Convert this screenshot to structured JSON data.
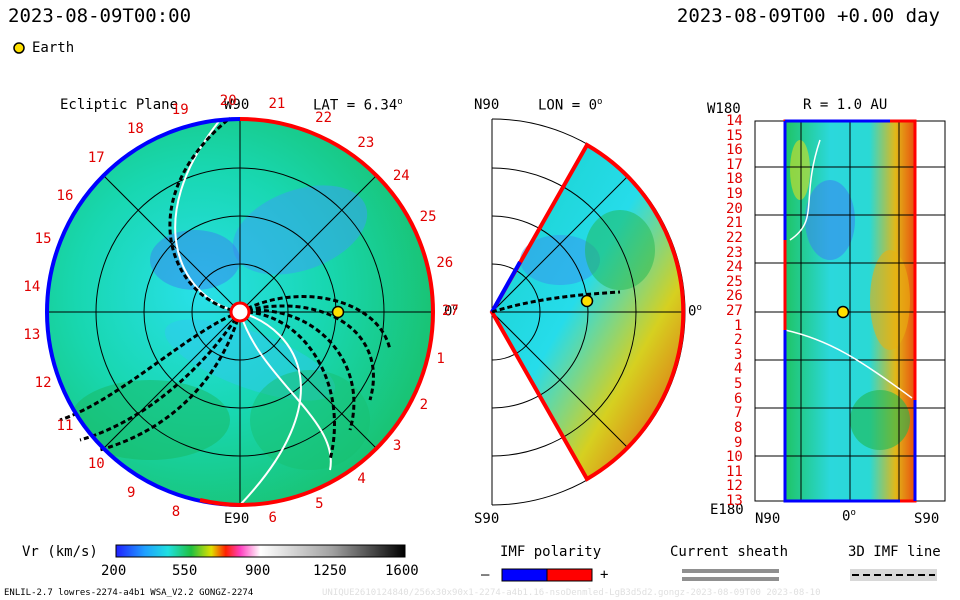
{
  "header": {
    "left_timestamp": "2023-08-09T00:00",
    "right_timestamp": "2023-08-09T00 +0.00 day"
  },
  "legend": {
    "earth_label": "Earth",
    "earth_color": "#ffe000"
  },
  "ecliptic": {
    "title": "Ecliptic Plane",
    "lat_label": "LAT = 6.34",
    "lat_deg": "o",
    "top_label": "W90",
    "bottom_label": "E90",
    "right_label": "0",
    "deg": "o",
    "cr_labels": [
      "1",
      "2",
      "3",
      "4",
      "5",
      "6",
      "8",
      "9",
      "10",
      "11",
      "12",
      "13",
      "14",
      "15",
      "16",
      "17",
      "18",
      "19",
      "20",
      "21",
      "22",
      "23",
      "24",
      "25",
      "26",
      "27"
    ]
  },
  "meridional": {
    "top_left": "N90",
    "lon_label": "LON = 0",
    "deg": "o",
    "right_label": "0",
    "bottom_label": "S90"
  },
  "radial": {
    "top_left": "W180",
    "r_label": "R = 1.0 AU",
    "bottom_left": "E180",
    "x_left": "N90",
    "x_mid": "0",
    "x_right": "S90",
    "deg": "o",
    "row_labels": [
      "14",
      "15",
      "16",
      "17",
      "18",
      "19",
      "20",
      "21",
      "22",
      "23",
      "24",
      "25",
      "26",
      "27",
      "1",
      "2",
      "3",
      "4",
      "5",
      "6",
      "7",
      "8",
      "9",
      "10",
      "11",
      "12",
      "13"
    ]
  },
  "colorbar": {
    "label": "Vr (km/s)",
    "ticks": [
      "200",
      "550",
      "900",
      "1250",
      "1600"
    ]
  },
  "imf": {
    "title": "IMF polarity",
    "minus": "–",
    "plus": "+",
    "neg_color": "#0000ff",
    "pos_color": "#ff0000"
  },
  "sheath": {
    "title": "Current sheath"
  },
  "imf3d": {
    "title": "3D IMF line"
  },
  "footer": {
    "left": "ENLIL-2.7 lowres-2274-a4b1 WSA_V2.2 GONGZ-2274",
    "right": "UNIQUE2610124840/256x30x90x1-2274-a4b1.16-nsoDenmled-LgB3d5d2.gongz-2023-08-09T00     2023-08-10"
  }
}
